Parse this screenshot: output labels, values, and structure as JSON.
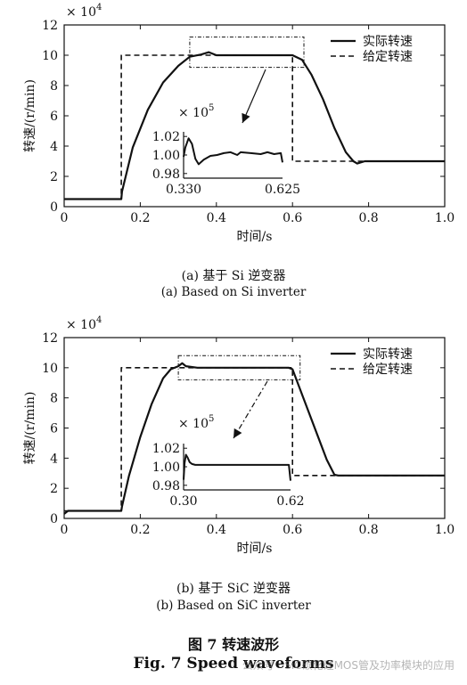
{
  "chart_data": [
    {
      "type": "line",
      "xlabel": "时间/s",
      "ylabel": "转速/(r/min)",
      "y_multiplier": "× 10",
      "y_multiplier_exp": "4",
      "xlim": [
        0,
        1.0
      ],
      "ylim": [
        0,
        12
      ],
      "xticks": [
        "0",
        "0.2",
        "0.4",
        "0.6",
        "0.8",
        "1.0"
      ],
      "yticks": [
        "0",
        "2",
        "4",
        "6",
        "8",
        "10",
        "12"
      ],
      "legend_position": "top-right",
      "series": [
        {
          "name": "实际转速",
          "style": "solid",
          "x": [
            0,
            0.15,
            0.152,
            0.18,
            0.22,
            0.26,
            0.3,
            0.33,
            0.36,
            0.38,
            0.4,
            0.43,
            0.47,
            0.52,
            0.58,
            0.6,
            0.625,
            0.65,
            0.68,
            0.71,
            0.74,
            0.76,
            0.77,
            0.79,
            1.0
          ],
          "y": [
            0.5,
            0.5,
            1.0,
            3.9,
            6.4,
            8.2,
            9.3,
            9.9,
            10.05,
            10.2,
            10.0,
            10.0,
            10.0,
            10.0,
            10.0,
            10.0,
            9.7,
            8.7,
            7.1,
            5.2,
            3.6,
            3.0,
            2.85,
            3.0,
            3.0
          ]
        },
        {
          "name": "给定转速",
          "style": "dashed",
          "x": [
            0,
            0.15,
            0.15,
            0.6,
            0.6,
            1.0
          ],
          "y": [
            0.5,
            0.5,
            10.0,
            10.0,
            3.0,
            3.0
          ]
        }
      ],
      "zoom_box": {
        "x": [
          0.33,
          0.63
        ],
        "y": [
          9.2,
          11.2
        ]
      },
      "inset": {
        "multiplier": "× 10",
        "multiplier_exp": "5",
        "xticks": [
          "0.330",
          "0.625"
        ],
        "yticks": [
          "1.02",
          "1.00",
          "0.98"
        ],
        "ylim": [
          0.975,
          1.025
        ],
        "x": [
          0.33,
          0.335,
          0.345,
          0.355,
          0.365,
          0.375,
          0.39,
          0.41,
          0.43,
          0.45,
          0.47,
          0.49,
          0.5,
          0.53,
          0.56,
          0.58,
          0.6,
          0.62,
          0.625
        ],
        "y": [
          0.998,
          1.008,
          1.018,
          1.012,
          0.996,
          0.99,
          0.995,
          0.999,
          1.0,
          1.002,
          1.003,
          1.0,
          1.003,
          1.002,
          1.001,
          1.003,
          1.001,
          1.002,
          0.992
        ]
      },
      "caption_cn": "(a)  基于 Si 逆变器",
      "caption_en": "(a) Based on Si inverter"
    },
    {
      "type": "line",
      "xlabel": "时间/s",
      "ylabel": "转速/(r/min)",
      "y_multiplier": "× 10",
      "y_multiplier_exp": "4",
      "xlim": [
        0,
        1.0
      ],
      "ylim": [
        0,
        12
      ],
      "xticks": [
        "0",
        "0.2",
        "0.4",
        "0.6",
        "0.8",
        "1.0"
      ],
      "yticks": [
        "0",
        "2",
        "4",
        "6",
        "8",
        "10",
        "12"
      ],
      "legend_position": "top-right",
      "series": [
        {
          "name": "实际转速",
          "style": "solid",
          "x": [
            0,
            0.01,
            0.15,
            0.152,
            0.17,
            0.2,
            0.23,
            0.26,
            0.28,
            0.3,
            0.31,
            0.32,
            0.35,
            0.4,
            0.5,
            0.59,
            0.6,
            0.63,
            0.66,
            0.69,
            0.71,
            0.72,
            1.0
          ],
          "y": [
            0.3,
            0.5,
            0.5,
            0.8,
            2.8,
            5.4,
            7.6,
            9.3,
            9.9,
            10.1,
            10.3,
            10.1,
            10.0,
            10.0,
            10.0,
            10.0,
            9.9,
            7.9,
            5.9,
            3.9,
            2.9,
            2.85,
            2.85
          ]
        },
        {
          "name": "给定转速",
          "style": "dashed",
          "x": [
            0,
            0.15,
            0.15,
            0.6,
            0.6,
            1.0
          ],
          "y": [
            0.5,
            0.5,
            10.0,
            10.0,
            2.85,
            2.85
          ]
        }
      ],
      "zoom_box": {
        "x": [
          0.3,
          0.62
        ],
        "y": [
          9.2,
          10.8
        ]
      },
      "inset": {
        "multiplier": "× 10",
        "multiplier_exp": "5",
        "xticks": [
          "0.30",
          "0.62"
        ],
        "yticks": [
          "1.02",
          "1.00",
          "0.98"
        ],
        "ylim": [
          0.975,
          1.025
        ],
        "x": [
          0.3,
          0.303,
          0.307,
          0.312,
          0.318,
          0.325,
          0.335,
          0.36,
          0.4,
          0.45,
          0.5,
          0.55,
          0.6,
          0.615,
          0.62
        ],
        "y": [
          0.986,
          1.004,
          1.013,
          1.01,
          1.005,
          1.003,
          1.002,
          1.002,
          1.002,
          1.002,
          1.002,
          1.002,
          1.002,
          1.002,
          0.985
        ]
      },
      "caption_cn": "(b)  基于 SiC 逆变器",
      "caption_en": "(b) Based on SiC inverter"
    }
  ],
  "figure_title_cn": "图 7  转速波形",
  "figure_title_en": "Fig. 7 Speed waveforms",
  "watermark": "公众号 · SiC碳化硅MOS管及功率模块的应用"
}
